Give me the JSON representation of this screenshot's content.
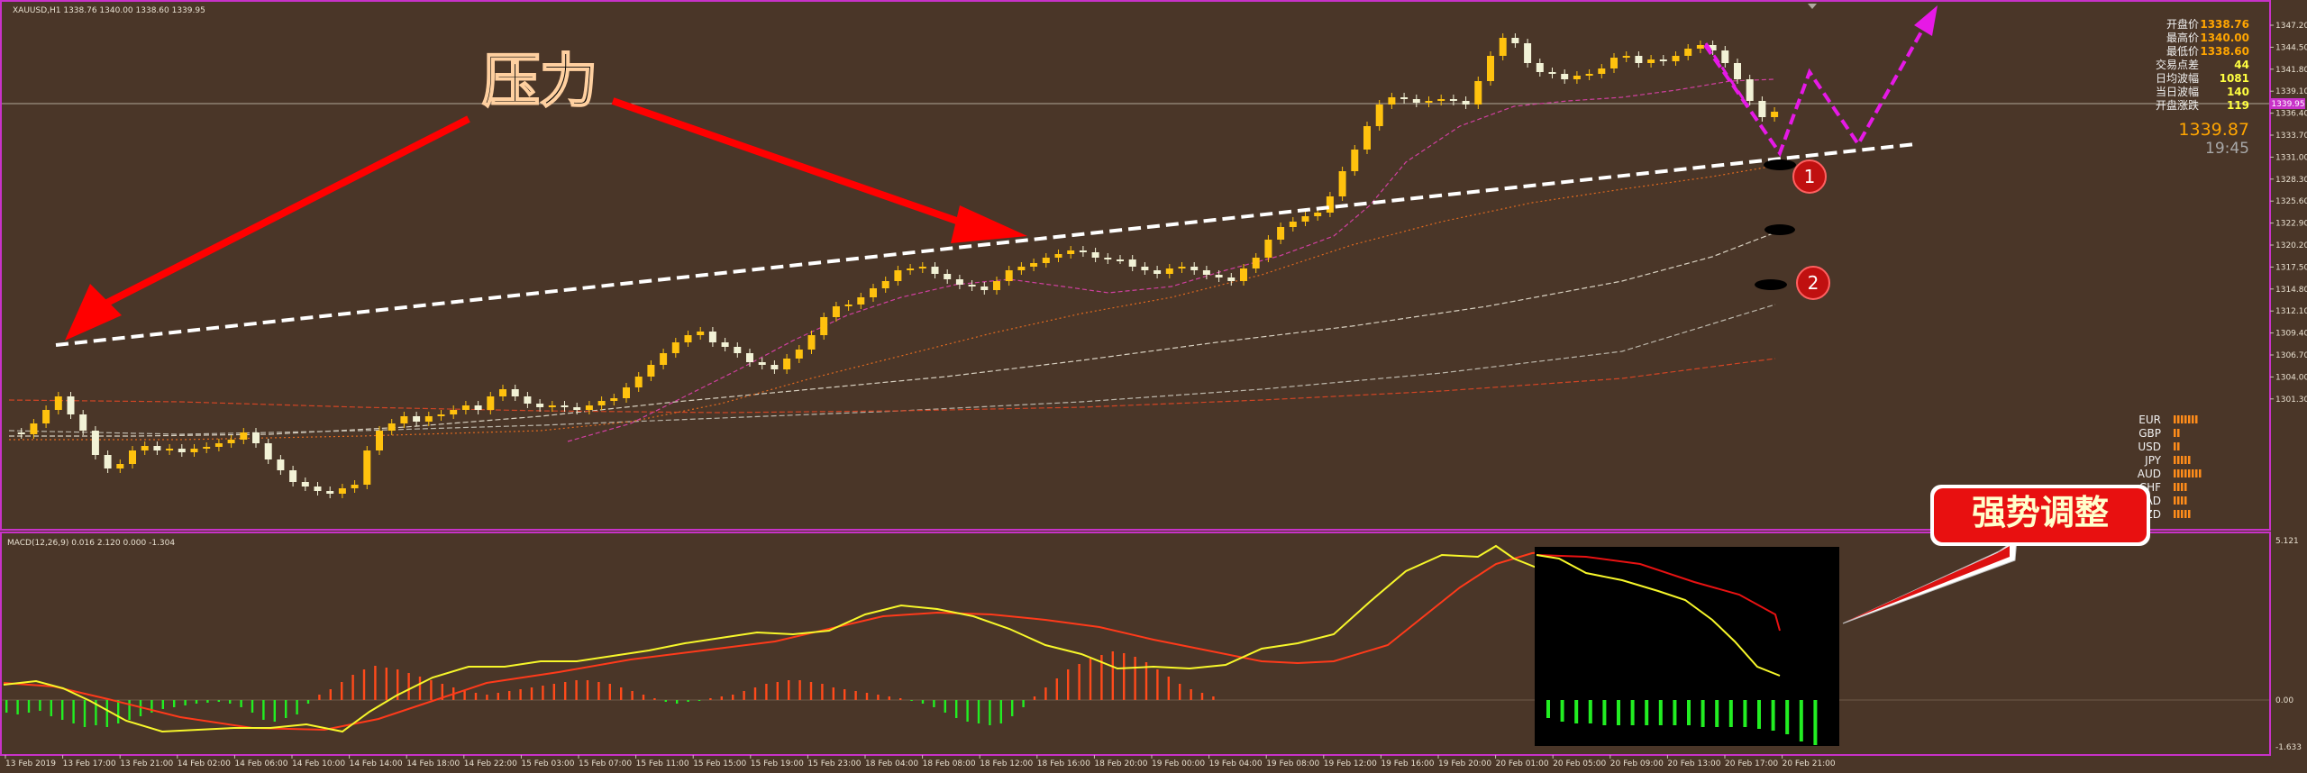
{
  "colors": {
    "background": "#4a3628",
    "frame": "#c832c8",
    "bull": "#ffc20e",
    "bear": "#f2f2d6",
    "trendline": "#ffffff",
    "annotation_arrow": "#ff0000",
    "projection": "#e619e6",
    "macd_line": "#f7f72a",
    "signal_line": "#ff3a1a",
    "hist_pos": "#ff4a1a",
    "hist_neg": "#22ee22"
  },
  "chart": {
    "header": "XAUUSD,H1  1338.76 1340.00 1338.60 1339.95",
    "macd_label": "MACD(12,26,9) 0.016 2.120 0.000 -1.304",
    "current_price": "1339.87",
    "current_price_tag": "1339.95",
    "countdown": "19:45",
    "price_axis": [
      "1347.20",
      "1344.50",
      "1341.80",
      "1339.10",
      "1336.40",
      "1333.70",
      "1331.00",
      "1328.30",
      "1325.60",
      "1322.90",
      "1320.20",
      "1317.50",
      "1314.80",
      "1312.10",
      "1309.40",
      "1306.70",
      "1304.00",
      "1301.30"
    ],
    "macd_axis": [
      "5.121",
      "0.00",
      "-1.633"
    ],
    "time_axis": [
      "13 Feb 2019",
      "13 Feb 17:00",
      "13 Feb 21:00",
      "14 Feb 02:00",
      "14 Feb 06:00",
      "14 Feb 10:00",
      "14 Feb 14:00",
      "14 Feb 18:00",
      "14 Feb 22:00",
      "15 Feb 03:00",
      "15 Feb 07:00",
      "15 Feb 11:00",
      "15 Feb 15:00",
      "15 Feb 19:00",
      "15 Feb 23:00",
      "18 Feb 04:00",
      "18 Feb 08:00",
      "18 Feb 12:00",
      "18 Feb 16:00",
      "18 Feb 20:00",
      "19 Feb 00:00",
      "19 Feb 04:00",
      "19 Feb 08:00",
      "19 Feb 12:00",
      "19 Feb 16:00",
      "19 Feb 20:00",
      "20 Feb 01:00",
      "20 Feb 05:00",
      "20 Feb 09:00",
      "20 Feb 13:00",
      "20 Feb 17:00",
      "20 Feb 21:00"
    ]
  },
  "info_panel": [
    {
      "label": "开盘价",
      "value": "1338.76"
    },
    {
      "label": "最高价",
      "value": "1340.00"
    },
    {
      "label": "最低价",
      "value": "1338.60"
    },
    {
      "label": "交易点差",
      "value": "44"
    },
    {
      "label": "日均波幅",
      "value": "1081"
    },
    {
      "label": "当日波幅",
      "value": "140"
    },
    {
      "label": "开盘涨跌",
      "value": "119"
    }
  ],
  "currency_strength": [
    {
      "name": "EUR",
      "bars": 7
    },
    {
      "name": "GBP",
      "bars": 2
    },
    {
      "name": "USD",
      "bars": 2
    },
    {
      "name": "JPY",
      "bars": 5
    },
    {
      "name": "AUD",
      "bars": 8
    },
    {
      "name": "CHF",
      "bars": 4
    },
    {
      "name": "CAD",
      "bars": 4
    },
    {
      "name": "NZD",
      "bars": 5
    }
  ],
  "annotations": {
    "pressure": "压力",
    "strong_adjust": "强势调整",
    "marker_1": "1",
    "marker_2": "2"
  }
}
